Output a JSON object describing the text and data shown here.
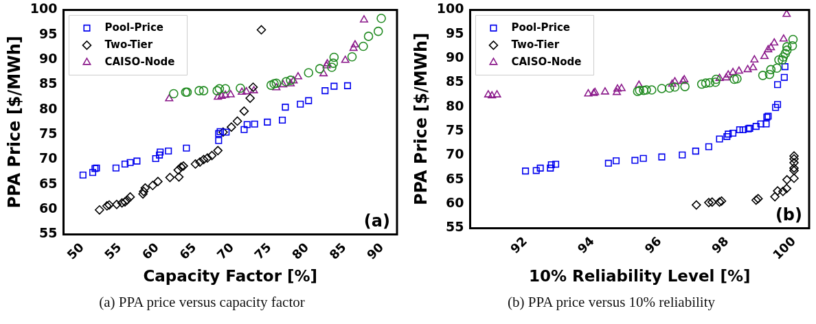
{
  "chart_data": [
    {
      "type": "scatter",
      "xlabel": "Capacity Factor [%]",
      "ylabel": "PPA Price [$/MWh]",
      "annotations": [
        "(a)",
        "(a) PPA price versus capacity factor"
      ],
      "xlim": [
        47.5,
        92
      ],
      "ylim": [
        55,
        100
      ],
      "xticks": [
        50,
        55,
        60,
        65,
        70,
        75,
        80,
        85,
        90
      ],
      "yticks": [
        55,
        60,
        65,
        70,
        75,
        80,
        85,
        90,
        95,
        100
      ],
      "grid": false,
      "legend": "top left",
      "series": [
        {
          "color": "#228b22",
          "marker": "circle",
          "x": [
            62.2,
            63.8,
            64.0,
            65.6,
            66.2,
            68.0,
            68.3,
            69.1,
            71.1,
            75.2,
            75.6,
            75.9,
            77.2,
            77.8,
            80.2,
            81.7,
            83.3,
            83.5,
            83.6,
            86.0,
            87.5,
            88.2,
            89.5,
            89.9
          ],
          "values": [
            83.2,
            83.5,
            83.5,
            83.8,
            83.8,
            83.8,
            84.2,
            84.2,
            84.3,
            84.9,
            85.2,
            85.3,
            85.6,
            85.9,
            87.4,
            88.2,
            88.5,
            89.3,
            90.5,
            90.6,
            92.7,
            94.7,
            95.7,
            98.3
          ]
        },
        {
          "name": "Pool-Price",
          "color": "#0000ee",
          "marker": "square",
          "x": [
            50.1,
            51.4,
            51.7,
            51.9,
            54.5,
            55.7,
            56.4,
            57.3,
            59.8,
            60.3,
            60.4,
            61.5,
            63.9,
            68.2,
            68.2,
            68.4,
            69.2,
            71.6,
            72.0,
            73.0,
            74.7,
            76.7,
            77.1,
            79.1,
            80.2,
            82.4,
            83.6,
            85.4
          ],
          "values": [
            66.9,
            67.4,
            68.2,
            68.3,
            68.3,
            69.1,
            69.4,
            69.7,
            70.2,
            70.9,
            71.5,
            71.7,
            72.3,
            73.8,
            75.2,
            75.6,
            75.5,
            76.0,
            77.0,
            77.1,
            77.5,
            77.9,
            80.5,
            81.1,
            81.8,
            83.8,
            84.7,
            84.8
          ]
        },
        {
          "name": "Two-Tier",
          "color": "#000000",
          "marker": "diamond",
          "x": [
            52.3,
            53.3,
            53.6,
            54.6,
            55.3,
            55.7,
            56.0,
            56.4,
            58.1,
            58.2,
            58.4,
            59.4,
            60.1,
            61.7,
            62.9,
            62.8,
            63.2,
            63.5,
            65.1,
            65.7,
            66.2,
            66.7,
            67.3,
            68.1,
            68.8,
            69.9,
            70.7,
            71.6,
            72.4,
            72.8,
            73.9
          ],
          "values": [
            59.9,
            60.7,
            60.9,
            61.0,
            61.3,
            61.5,
            61.9,
            62.5,
            63.1,
            63.6,
            64.3,
            64.8,
            65.6,
            66.4,
            66.5,
            67.9,
            68.5,
            68.7,
            69.1,
            69.5,
            70.0,
            70.3,
            70.8,
            71.8,
            75.5,
            76.5,
            77.7,
            79.7,
            82.3,
            84.5,
            96.0
          ]
        },
        {
          "name": "CAISO-Node",
          "color": "#8b1a8b",
          "marker": "triangle",
          "x": [
            61.6,
            68.1,
            68.6,
            69.1,
            69.8,
            71.3,
            71.9,
            72.9,
            75.9,
            76.8,
            77.8,
            78.2,
            78.8,
            82.2,
            82.6,
            82.7,
            85.1,
            86.2,
            86.4,
            87.6
          ],
          "values": [
            82.2,
            82.5,
            82.7,
            82.9,
            83.0,
            83.5,
            83.6,
            83.8,
            84.4,
            85.0,
            85.2,
            85.8,
            86.6,
            87.2,
            88.8,
            89.2,
            89.9,
            92.3,
            93.0,
            98.0
          ]
        }
      ]
    },
    {
      "type": "scatter",
      "xlabel": "10% Reliability Level [%]",
      "ylabel": "PPA Price [$/MWh]",
      "annotations": [
        "(b)",
        "(b) PPA price versus 10% reliability"
      ],
      "xlim": [
        90.35,
        100.45
      ],
      "ylim": [
        55,
        100
      ],
      "xticks": [
        92,
        94,
        96,
        98,
        100
      ],
      "yticks": [
        55,
        60,
        65,
        70,
        75,
        80,
        85,
        90,
        95,
        100
      ],
      "grid": false,
      "legend": "top left",
      "series": [
        {
          "color": "#228b22",
          "marker": "circle",
          "x": [
            95.34,
            95.4,
            95.52,
            95.6,
            95.76,
            96.06,
            96.29,
            96.45,
            96.75,
            97.25,
            97.37,
            97.49,
            97.66,
            97.68,
            98.22,
            98.3,
            99.07,
            99.27,
            99.31,
            99.49,
            99.55,
            99.65,
            99.68,
            99.74,
            99.79,
            99.79,
            99.95,
            99.97
          ],
          "values": [
            83.2,
            83.4,
            83.4,
            83.5,
            83.5,
            83.8,
            83.9,
            84.1,
            84.2,
            84.7,
            84.9,
            85.0,
            85.1,
            85.7,
            85.7,
            85.8,
            86.5,
            86.7,
            87.7,
            88.0,
            89.7,
            89.7,
            90.3,
            91.0,
            91.7,
            92.4,
            92.6,
            93.9
          ]
        },
        {
          "name": "Pool-Price",
          "color": "#0000ee",
          "marker": "square",
          "x": [
            92.0,
            92.32,
            92.44,
            92.74,
            92.77,
            92.9,
            94.47,
            94.7,
            95.26,
            95.51,
            96.06,
            96.67,
            97.07,
            97.46,
            97.78,
            98.0,
            98.04,
            98.18,
            98.38,
            98.48,
            98.64,
            98.68,
            98.87,
            99.01,
            99.17,
            99.19,
            99.23,
            99.45,
            99.51,
            99.51,
            99.71,
            99.73
          ],
          "values": [
            66.8,
            66.9,
            67.4,
            67.4,
            68.1,
            68.2,
            68.4,
            68.9,
            69.0,
            69.4,
            69.7,
            70.1,
            70.9,
            71.8,
            73.4,
            73.9,
            74.4,
            74.6,
            75.3,
            75.3,
            75.5,
            75.6,
            76.0,
            76.5,
            76.5,
            77.9,
            78.1,
            79.9,
            80.5,
            84.6,
            86.1,
            88.3
          ]
        },
        {
          "name": "Two-Tier",
          "color": "#000000",
          "marker": "diamond",
          "x": [
            97.09,
            97.46,
            97.56,
            97.78,
            97.84,
            98.87,
            98.93,
            99.43,
            99.51,
            99.67,
            99.78,
            99.79,
            100.0,
            100.0,
            100.0,
            100.0,
            100.0,
            100.0
          ],
          "values": [
            59.8,
            60.3,
            60.4,
            60.4,
            60.6,
            60.8,
            61.1,
            61.5,
            62.7,
            62.6,
            63.2,
            65.0,
            65.3,
            66.9,
            67.4,
            68.5,
            69.3,
            69.9
          ]
        },
        {
          "name": "CAISO-Node",
          "color": "#8b1a8b",
          "marker": "triangle",
          "x": [
            91.0,
            90.89,
            91.15,
            93.87,
            94.03,
            94.07,
            94.37,
            94.72,
            94.74,
            94.86,
            95.38,
            96.37,
            96.45,
            96.69,
            96.73,
            97.78,
            97.98,
            98.04,
            98.18,
            98.36,
            98.62,
            98.78,
            98.82,
            99.12,
            99.23,
            99.31,
            99.41,
            99.69,
            99.78
          ],
          "values": [
            82.3,
            82.5,
            82.5,
            82.7,
            82.8,
            83.0,
            83.1,
            83.0,
            83.7,
            83.8,
            84.5,
            84.7,
            85.2,
            85.3,
            85.6,
            85.9,
            86.0,
            86.6,
            87.1,
            87.4,
            87.7,
            88.1,
            89.7,
            90.4,
            91.8,
            92.2,
            93.2,
            94.0,
            99.1
          ]
        }
      ]
    }
  ]
}
